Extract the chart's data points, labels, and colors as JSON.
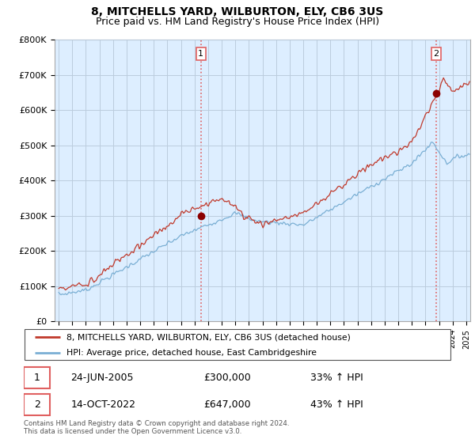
{
  "title": "8, MITCHELLS YARD, WILBURTON, ELY, CB6 3US",
  "subtitle": "Price paid vs. HM Land Registry's House Price Index (HPI)",
  "legend_line1": "8, MITCHELLS YARD, WILBURTON, ELY, CB6 3US (detached house)",
  "legend_line2": "HPI: Average price, detached house, East Cambridgeshire",
  "note": "Contains HM Land Registry data © Crown copyright and database right 2024.\nThis data is licensed under the Open Government Licence v3.0.",
  "sale1_date": "24-JUN-2005",
  "sale1_price": "£300,000",
  "sale1_hpi": "33% ↑ HPI",
  "sale2_date": "14-OCT-2022",
  "sale2_price": "£647,000",
  "sale2_hpi": "43% ↑ HPI",
  "sale1_x": 2005.47,
  "sale1_y": 300000,
  "sale2_x": 2022.79,
  "sale2_y": 647000,
  "hpi_color": "#7aafd4",
  "price_color": "#c0392b",
  "marker_color": "#8b0000",
  "vline_color": "#e06060",
  "chart_bg": "#ddeeff",
  "grid_color": "#bbccdd",
  "ylim": [
    0,
    800000
  ],
  "xlim_start": 1994.7,
  "xlim_end": 2025.3
}
